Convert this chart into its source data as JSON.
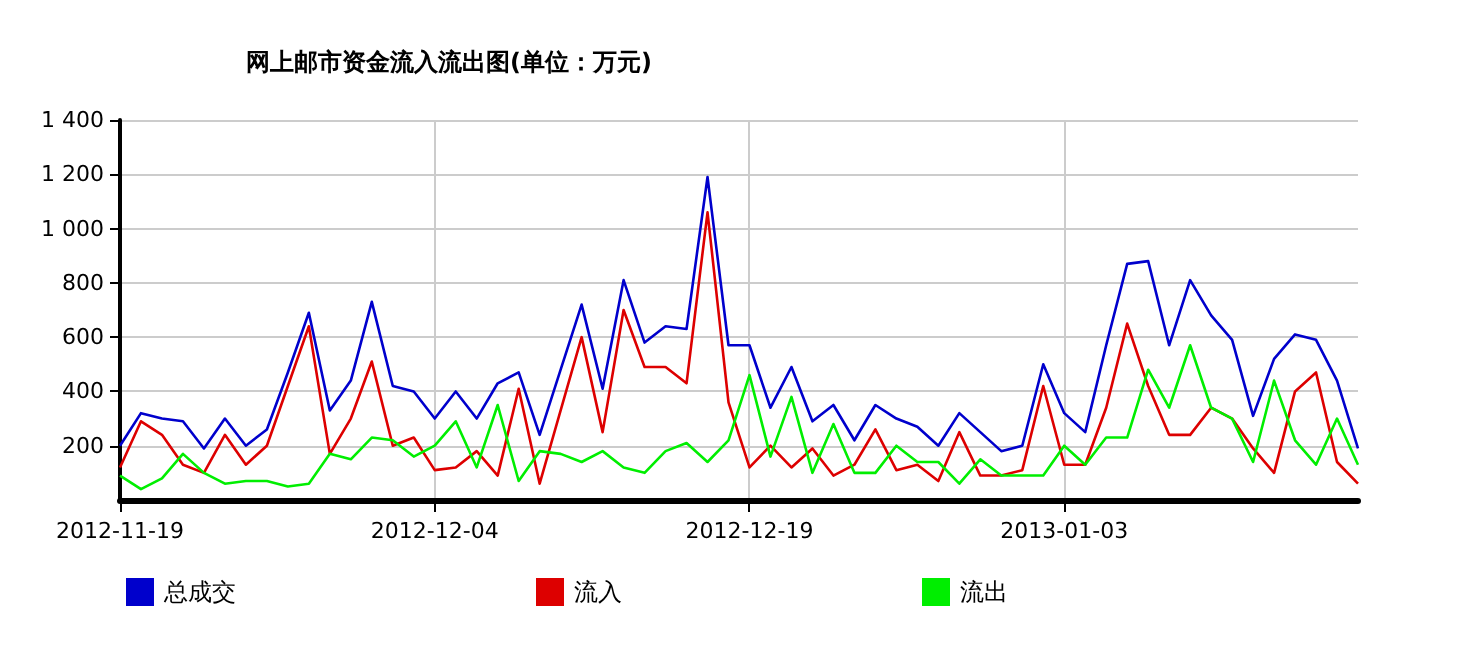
{
  "chart_data": {
    "type": "line",
    "title": "网上邮市资金流入流出图(单位：万元)",
    "x": [
      "2012-11-19",
      "2012-11-20",
      "2012-11-21",
      "2012-11-22",
      "2012-11-23",
      "2012-11-24",
      "2012-11-25",
      "2012-11-26",
      "2012-11-27",
      "2012-11-28",
      "2012-11-29",
      "2012-11-30",
      "2012-12-01",
      "2012-12-02",
      "2012-12-03",
      "2012-12-04",
      "2012-12-05",
      "2012-12-06",
      "2012-12-07",
      "2012-12-08",
      "2012-12-09",
      "2012-12-10",
      "2012-12-11",
      "2012-12-12",
      "2012-12-13",
      "2012-12-14",
      "2012-12-15",
      "2012-12-16",
      "2012-12-17",
      "2012-12-18",
      "2012-12-19",
      "2012-12-20",
      "2012-12-21",
      "2012-12-22",
      "2012-12-23",
      "2012-12-24",
      "2012-12-25",
      "2012-12-26",
      "2012-12-27",
      "2012-12-28",
      "2012-12-29",
      "2012-12-30",
      "2012-12-31",
      "2013-01-01",
      "2013-01-02",
      "2013-01-03",
      "2013-01-04",
      "2013-01-05",
      "2013-01-06",
      "2013-01-07",
      "2013-01-08",
      "2013-01-09",
      "2013-01-10",
      "2013-01-11",
      "2013-01-12",
      "2013-01-13",
      "2013-01-14",
      "2013-01-15",
      "2013-01-16",
      "2013-01-17"
    ],
    "series": [
      {
        "name": "总成交",
        "color": "#0000cc",
        "values": [
          200,
          320,
          300,
          290,
          190,
          300,
          200,
          260,
          470,
          690,
          330,
          440,
          730,
          420,
          400,
          300,
          400,
          300,
          430,
          470,
          240,
          480,
          720,
          410,
          810,
          580,
          640,
          630,
          1190,
          570,
          570,
          340,
          490,
          290,
          350,
          220,
          350,
          300,
          270,
          200,
          320,
          250,
          180,
          200,
          500,
          320,
          250,
          570,
          870,
          880,
          570,
          810,
          680,
          590,
          310,
          520,
          610,
          590,
          440,
          190
        ]
      },
      {
        "name": "流入",
        "color": "#dd0000",
        "values": [
          120,
          290,
          240,
          130,
          100,
          240,
          130,
          200,
          420,
          640,
          170,
          300,
          510,
          200,
          230,
          110,
          120,
          180,
          90,
          410,
          60,
          330,
          600,
          250,
          700,
          490,
          490,
          430,
          1060,
          360,
          120,
          200,
          120,
          190,
          90,
          130,
          260,
          110,
          130,
          70,
          250,
          90,
          90,
          110,
          420,
          130,
          130,
          340,
          650,
          420,
          240,
          240,
          340,
          300,
          190,
          100,
          400,
          470,
          140,
          60
        ]
      },
      {
        "name": "流出",
        "color": "#00ee00",
        "values": [
          90,
          40,
          80,
          170,
          100,
          60,
          70,
          70,
          50,
          60,
          170,
          150,
          230,
          220,
          160,
          200,
          290,
          120,
          350,
          70,
          180,
          170,
          140,
          180,
          120,
          100,
          180,
          210,
          140,
          220,
          460,
          160,
          380,
          100,
          280,
          100,
          100,
          200,
          140,
          140,
          60,
          150,
          90,
          90,
          90,
          200,
          130,
          230,
          230,
          480,
          340,
          570,
          340,
          300,
          140,
          440,
          220,
          130,
          300,
          130
        ]
      }
    ],
    "xlim": [
      "2012-11-19",
      "2013-01-17"
    ],
    "xticks": [
      "2012-11-19",
      "2012-12-04",
      "2012-12-19",
      "2013-01-03"
    ],
    "ylim": [
      0,
      1400
    ],
    "yticks": [
      200,
      400,
      600,
      800,
      {
        "value": 1000,
        "label": "1 000"
      },
      {
        "value": 1200,
        "label": "1 200"
      },
      {
        "value": 1400,
        "label": "1 400"
      }
    ],
    "grid": true,
    "legend": "bottom left",
    "marker": "none",
    "line_style": "solid"
  }
}
